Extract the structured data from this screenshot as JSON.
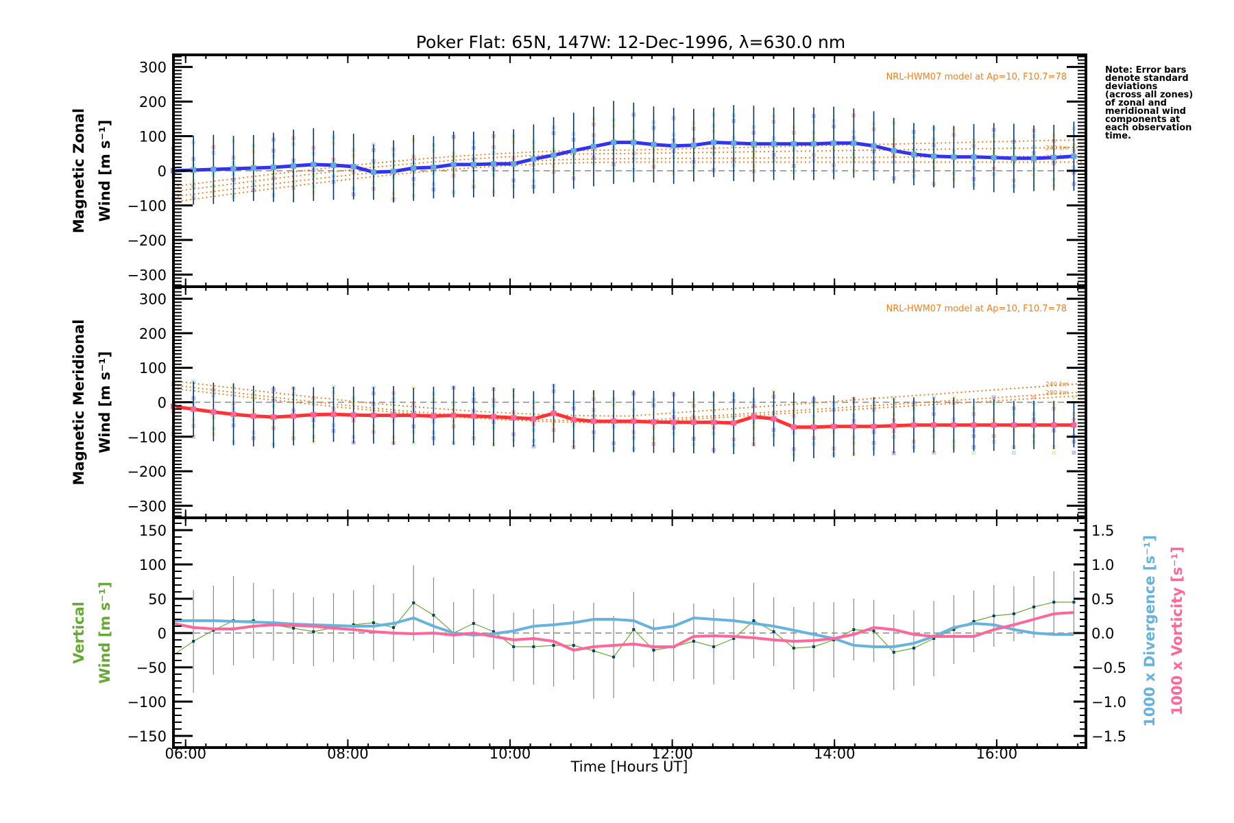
{
  "chart_data": {
    "title": "Poker Flat: 65N, 147W: 12-Dec-1996, λ=630.0 nm",
    "xlabel": "Time [Hours UT]",
    "x_range_hours": [
      5.85,
      17.1
    ],
    "x_ticks": [
      {
        "value": 6,
        "label": "06:00"
      },
      {
        "value": 8,
        "label": "08:00"
      },
      {
        "value": 10,
        "label": "10:00"
      },
      {
        "value": 12,
        "label": "12:00"
      },
      {
        "value": 14,
        "label": "14:00"
      },
      {
        "value": 16,
        "label": "16:00"
      }
    ],
    "sample_start_hour": 5.85,
    "sample_step_hours": 0.2467,
    "note": [
      "Note: Error bars",
      "denote standard",
      "deviations",
      "(across all zones)",
      "of zonal and",
      "meridional wind",
      "components at",
      "each observation",
      "time."
    ],
    "panels": [
      {
        "type": "line",
        "name": "zonal",
        "ylabel_line1": "Magnetic Zonal",
        "ylabel_line2": "Wind [m s⁻¹]",
        "ylim": [
          -335,
          335
        ],
        "y_ticks": [
          300,
          200,
          100,
          0,
          -100,
          -200,
          -300
        ],
        "y_tick_labels": [
          "300",
          "200",
          "100",
          "0",
          "−100",
          "−200",
          "−300"
        ],
        "model_label": "NRL-HWM07 model at Ap=10, F10.7=78",
        "model_curves": [
          {
            "label": "240 km",
            "start": -60,
            "mid": 50,
            "end": 68
          },
          {
            "label": "280 km",
            "start": -75,
            "mid": 35,
            "end": 42
          },
          {
            "label": "",
            "start": -45,
            "mid": 60,
            "end": 90
          },
          {
            "label": "",
            "start": -90,
            "mid": 25,
            "end": 25
          }
        ],
        "series_color": "#3333ee",
        "marker_color": "#66aadd",
        "errbar_color": "#003366",
        "values": [
          0,
          2,
          4,
          6,
          8,
          10,
          14,
          18,
          16,
          12,
          -4,
          -2,
          8,
          10,
          18,
          18,
          20,
          20,
          34,
          45,
          58,
          70,
          82,
          82,
          76,
          72,
          74,
          82,
          80,
          78,
          78,
          78,
          78,
          80,
          80,
          72,
          58,
          48,
          42,
          40,
          40,
          38,
          36,
          36,
          38,
          42
        ],
        "errors": [
          110,
          100,
          100,
          95,
          95,
          100,
          105,
          105,
          100,
          95,
          80,
          90,
          95,
          90,
          95,
          95,
          95,
          100,
          100,
          110,
          110,
          115,
          120,
          115,
          110,
          110,
          105,
          100,
          110,
          110,
          105,
          105,
          105,
          105,
          100,
          100,
          95,
          90,
          90,
          90,
          95,
          100,
          100,
          95,
          95,
          100
        ]
      },
      {
        "type": "line",
        "name": "meridional",
        "ylabel_line1": "Magnetic Meridional",
        "ylabel_line2": "Wind [m s⁻¹]",
        "ylim": [
          -335,
          335
        ],
        "y_ticks": [
          300,
          200,
          100,
          0,
          -100,
          -200,
          -300
        ],
        "y_tick_labels": [
          "300",
          "200",
          "100",
          "0",
          "−100",
          "−200",
          "−300"
        ],
        "model_label": "NRL-HWM07 model at Ap=10, F10.7=78",
        "model_curves": [
          {
            "label": "240 km",
            "start": 62,
            "mid": -40,
            "end": 55
          },
          {
            "label": "280 km",
            "start": 50,
            "mid": -55,
            "end": 30
          },
          {
            "label": "",
            "start": 40,
            "mid": -60,
            "end": 20
          }
        ],
        "series_color": "#ff3333",
        "marker_color": "#ff6699",
        "errbar_color": "#003366",
        "values": [
          -12,
          -20,
          -28,
          -35,
          -40,
          -43,
          -40,
          -36,
          -35,
          -37,
          -38,
          -38,
          -38,
          -40,
          -38,
          -40,
          -42,
          -45,
          -48,
          -32,
          -50,
          -55,
          -55,
          -55,
          -57,
          -58,
          -58,
          -58,
          -60,
          -42,
          -48,
          -72,
          -72,
          -70,
          -70,
          -70,
          -68,
          -66,
          -66,
          -66,
          -66,
          -66,
          -66,
          -66,
          -66,
          -66
        ],
        "errors": [
          80,
          80,
          85,
          90,
          88,
          90,
          85,
          80,
          80,
          82,
          82,
          85,
          80,
          85,
          85,
          85,
          85,
          85,
          80,
          85,
          85,
          90,
          90,
          90,
          90,
          88,
          90,
          90,
          90,
          85,
          80,
          100,
          90,
          90,
          85,
          85,
          80,
          80,
          80,
          80,
          75,
          75,
          70,
          70,
          70,
          65
        ]
      },
      {
        "type": "line",
        "name": "vertical",
        "ylabel_line1": "Vertical",
        "ylabel_line2": "Wind [m s⁻¹]",
        "ylim": [
          -167,
          168
        ],
        "y_ticks": [
          150,
          100,
          50,
          0,
          -50,
          -100,
          -150
        ],
        "y_tick_labels": [
          "150",
          "100",
          "50",
          "0",
          "−50",
          "−100",
          "−150"
        ],
        "y2_label_divergence": "1000 x Divergence [s⁻¹]",
        "y2_label_vorticity": "1000 x Vorticity [s⁻¹]",
        "y2_ticks": [
          1.5,
          1.0,
          0.5,
          0.0,
          -0.5,
          -1.0,
          -1.5
        ],
        "y2_tick_labels": [
          "1.5",
          "1.0",
          "0.5",
          "0.0",
          "−0.5",
          "−1.0",
          "−1.5"
        ],
        "y2_lim": [
          -1.67,
          1.68
        ],
        "vertical_color": "#66aa33",
        "divergence_color": "#66b3dd",
        "vorticity_color": "#ff6699",
        "vertical_values": [
          -32,
          -12,
          4,
          18,
          18,
          12,
          7,
          2,
          8,
          12,
          15,
          8,
          44,
          26,
          0,
          14,
          2,
          -20,
          -20,
          -18,
          -18,
          -26,
          -35,
          5,
          -25,
          -20,
          -12,
          -20,
          -8,
          18,
          2,
          -22,
          -20,
          -10,
          5,
          3,
          -28,
          -22,
          -8,
          5,
          17,
          25,
          28,
          38,
          45,
          45
        ],
        "vertical_errors": [
          45,
          75,
          65,
          65,
          55,
          52,
          52,
          50,
          50,
          50,
          55,
          50,
          55,
          55,
          45,
          50,
          55,
          50,
          55,
          60,
          50,
          70,
          60,
          55,
          45,
          50,
          55,
          55,
          60,
          55,
          50,
          60,
          65,
          55,
          45,
          45,
          55,
          55,
          55,
          50,
          45,
          45,
          40,
          45,
          45,
          45
        ],
        "divergence_values": [
          0.18,
          0.18,
          0.18,
          0.17,
          0.16,
          0.15,
          0.13,
          0.12,
          0.11,
          0.1,
          0.1,
          0.14,
          0.22,
          0.1,
          0.0,
          -0.03,
          -0.01,
          0.03,
          0.1,
          0.12,
          0.15,
          0.2,
          0.2,
          0.18,
          0.06,
          0.1,
          0.22,
          0.2,
          0.18,
          0.14,
          0.1,
          0.04,
          -0.02,
          -0.08,
          -0.18,
          -0.2,
          -0.2,
          -0.15,
          -0.05,
          0.08,
          0.14,
          0.12,
          0.05,
          0.0,
          -0.02,
          -0.02
        ],
        "vorticity_values": [
          0.14,
          0.08,
          0.06,
          0.06,
          0.1,
          0.12,
          0.11,
          0.1,
          0.07,
          0.05,
          0.02,
          0.0,
          -0.01,
          0.0,
          -0.03,
          0.0,
          -0.05,
          -0.1,
          -0.08,
          -0.12,
          -0.25,
          -0.2,
          -0.18,
          -0.16,
          -0.2,
          -0.2,
          -0.05,
          -0.04,
          -0.05,
          -0.07,
          -0.1,
          -0.12,
          -0.11,
          -0.08,
          -0.02,
          0.08,
          0.05,
          -0.02,
          -0.05,
          -0.05,
          -0.05,
          0.05,
          0.12,
          0.2,
          0.28,
          0.3
        ]
      }
    ]
  }
}
